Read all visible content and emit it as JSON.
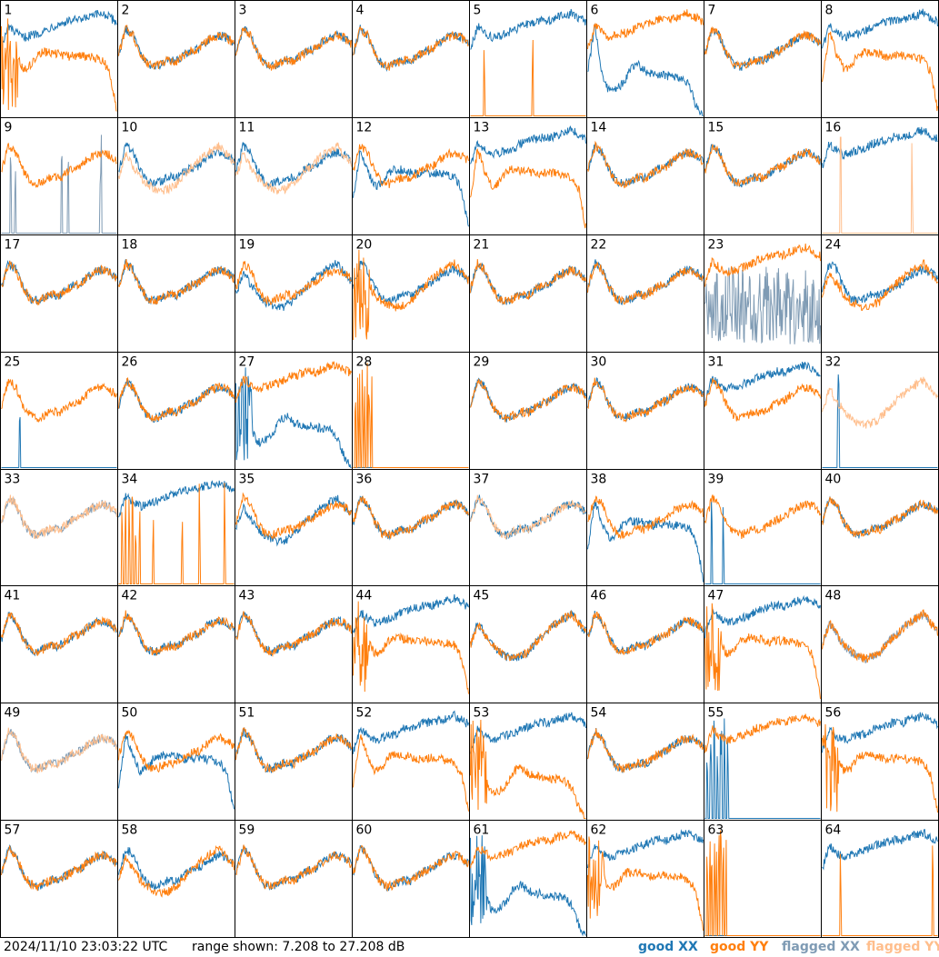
{
  "chart_data": {
    "type": "line",
    "grid": {
      "rows": 8,
      "cols": 8
    },
    "y_range_db": [
      7.208,
      27.208
    ],
    "series_styles": {
      "good_xx": "#1f77b4",
      "good_yy": "#ff7f0e",
      "flagged_xx": "#7f9bb4",
      "flagged_yy": "#ffbe8c"
    },
    "shape_library": {
      "A": [
        0.55,
        0.78,
        0.72,
        0.56,
        0.46,
        0.44,
        0.47,
        0.5,
        0.49,
        0.54,
        0.58,
        0.6,
        0.66,
        0.7,
        0.72,
        0.7,
        0.64
      ],
      "B": [
        0.5,
        0.7,
        0.6,
        0.5,
        0.44,
        0.4,
        0.38,
        0.4,
        0.44,
        0.52,
        0.58,
        0.64,
        0.7,
        0.74,
        0.78,
        0.7,
        0.62
      ],
      "H": [
        0.6,
        0.8,
        0.74,
        0.7,
        0.72,
        0.74,
        0.76,
        0.8,
        0.82,
        0.84,
        0.86,
        0.85,
        0.88,
        0.9,
        0.92,
        0.88,
        0.84
      ],
      "D": [
        0.3,
        0.75,
        0.55,
        0.42,
        0.45,
        0.55,
        0.57,
        0.56,
        0.55,
        0.53,
        0.54,
        0.54,
        0.53,
        0.52,
        0.5,
        0.4,
        0.05
      ],
      "S": [
        0.4,
        0.8,
        0.36,
        0.22,
        0.24,
        0.3,
        0.42,
        0.46,
        0.4,
        0.38,
        0.37,
        0.36,
        0.35,
        0.34,
        0.28,
        0.1,
        0.0
      ]
    },
    "panels": [
      {
        "id": 1,
        "xx": {
          "shape": "H",
          "status": "good"
        },
        "yy": {
          "shape": "D",
          "status": "good",
          "spiky_start": true
        }
      },
      {
        "id": 2,
        "xx": {
          "shape": "A",
          "status": "good"
        },
        "yy": {
          "shape": "A",
          "status": "good"
        }
      },
      {
        "id": 3,
        "xx": {
          "shape": "A",
          "status": "good"
        },
        "yy": {
          "shape": "A",
          "status": "good"
        }
      },
      {
        "id": 4,
        "xx": {
          "shape": "A",
          "status": "good"
        },
        "yy": {
          "shape": "A",
          "status": "good"
        }
      },
      {
        "id": 5,
        "xx": {
          "shape": "H",
          "status": "good"
        },
        "yy": {
          "shape": "flat",
          "status": "good",
          "spikes": [
            0.12,
            0.54
          ]
        }
      },
      {
        "id": 6,
        "xx": {
          "shape": "S",
          "status": "good"
        },
        "yy": {
          "shape": "H",
          "status": "good"
        }
      },
      {
        "id": 7,
        "xx": {
          "shape": "A",
          "status": "good"
        },
        "yy": {
          "shape": "A",
          "status": "good"
        }
      },
      {
        "id": 8,
        "xx": {
          "shape": "H",
          "status": "good"
        },
        "yy": {
          "shape": "D",
          "status": "good"
        }
      },
      {
        "id": 9,
        "xx": {
          "shape": "flat",
          "status": "flagged",
          "spikes": [
            0.08,
            0.12,
            0.52,
            0.58,
            0.86
          ]
        },
        "yy": {
          "shape": "A",
          "status": "good"
        }
      },
      {
        "id": 10,
        "xx": {
          "shape": "A",
          "status": "good"
        },
        "yy": {
          "shape": "B",
          "status": "flagged"
        }
      },
      {
        "id": 11,
        "xx": {
          "shape": "A",
          "status": "good"
        },
        "yy": {
          "shape": "B",
          "status": "flagged"
        }
      },
      {
        "id": 12,
        "xx": {
          "shape": "D",
          "status": "good"
        },
        "yy": {
          "shape": "A",
          "status": "good"
        }
      },
      {
        "id": 13,
        "xx": {
          "shape": "H",
          "status": "good"
        },
        "yy": {
          "shape": "D",
          "status": "good"
        }
      },
      {
        "id": 14,
        "xx": {
          "shape": "A",
          "status": "good"
        },
        "yy": {
          "shape": "A",
          "status": "good"
        }
      },
      {
        "id": 15,
        "xx": {
          "shape": "A",
          "status": "good"
        },
        "yy": {
          "shape": "A",
          "status": "good"
        }
      },
      {
        "id": 16,
        "xx": {
          "shape": "H",
          "status": "good"
        },
        "yy": {
          "shape": "flat",
          "status": "flagged",
          "spikes": [
            0.16,
            0.78
          ]
        }
      },
      {
        "id": 17,
        "xx": {
          "shape": "A",
          "status": "good"
        },
        "yy": {
          "shape": "A",
          "status": "good"
        }
      },
      {
        "id": 18,
        "xx": {
          "shape": "A",
          "status": "good"
        },
        "yy": {
          "shape": "A",
          "status": "good"
        }
      },
      {
        "id": 19,
        "xx": {
          "shape": "B",
          "status": "good"
        },
        "yy": {
          "shape": "A",
          "status": "good"
        }
      },
      {
        "id": 20,
        "xx": {
          "shape": "A",
          "status": "good"
        },
        "yy": {
          "shape": "B",
          "status": "good",
          "spiky_start": true
        }
      },
      {
        "id": 21,
        "xx": {
          "shape": "A",
          "status": "good"
        },
        "yy": {
          "shape": "A",
          "status": "good"
        }
      },
      {
        "id": 22,
        "xx": {
          "shape": "A",
          "status": "good"
        },
        "yy": {
          "shape": "A",
          "status": "good"
        }
      },
      {
        "id": 23,
        "xx": {
          "shape": "noise",
          "status": "flagged"
        },
        "yy": {
          "shape": "H",
          "status": "good"
        }
      },
      {
        "id": 24,
        "xx": {
          "shape": "A",
          "status": "good"
        },
        "yy": {
          "shape": "B",
          "status": "good"
        }
      },
      {
        "id": 25,
        "xx": {
          "shape": "flat",
          "status": "good",
          "spikes": [
            0.16
          ]
        },
        "yy": {
          "shape": "A",
          "status": "good"
        }
      },
      {
        "id": 26,
        "xx": {
          "shape": "A",
          "status": "good"
        },
        "yy": {
          "shape": "A",
          "status": "good"
        }
      },
      {
        "id": 27,
        "xx": {
          "shape": "S",
          "status": "good",
          "spiky_start": true
        },
        "yy": {
          "shape": "H",
          "status": "good"
        }
      },
      {
        "id": 28,
        "xx": {
          "shape": "flat",
          "status": "good"
        },
        "yy": {
          "shape": "flat",
          "status": "good",
          "spikes": [
            0.02,
            0.04,
            0.06,
            0.08,
            0.1,
            0.12,
            0.14,
            0.16
          ]
        }
      },
      {
        "id": 29,
        "xx": {
          "shape": "A",
          "status": "good"
        },
        "yy": {
          "shape": "A",
          "status": "good"
        }
      },
      {
        "id": 30,
        "xx": {
          "shape": "A",
          "status": "good"
        },
        "yy": {
          "shape": "A",
          "status": "good"
        }
      },
      {
        "id": 31,
        "xx": {
          "shape": "H",
          "status": "good"
        },
        "yy": {
          "shape": "A",
          "status": "good"
        }
      },
      {
        "id": 32,
        "xx": {
          "shape": "flat",
          "status": "good",
          "spikes": [
            0.14
          ]
        },
        "yy": {
          "shape": "B",
          "status": "flagged"
        }
      },
      {
        "id": 33,
        "xx": {
          "shape": "A",
          "status": "flagged"
        },
        "yy": {
          "shape": "A",
          "status": "flagged"
        }
      },
      {
        "id": 34,
        "xx": {
          "shape": "H",
          "status": "good"
        },
        "yy": {
          "shape": "flat",
          "status": "good",
          "spikes": [
            0.03,
            0.06,
            0.09,
            0.12,
            0.15,
            0.18,
            0.3,
            0.55,
            0.7,
            0.92
          ]
        }
      },
      {
        "id": 35,
        "xx": {
          "shape": "B",
          "status": "good"
        },
        "yy": {
          "shape": "A",
          "status": "good"
        }
      },
      {
        "id": 36,
        "xx": {
          "shape": "A",
          "status": "good"
        },
        "yy": {
          "shape": "A",
          "status": "good"
        }
      },
      {
        "id": 37,
        "xx": {
          "shape": "A",
          "status": "good"
        },
        "yy": {
          "shape": "A",
          "status": "flagged"
        }
      },
      {
        "id": 38,
        "xx": {
          "shape": "D",
          "status": "good"
        },
        "yy": {
          "shape": "A",
          "status": "good"
        }
      },
      {
        "id": 39,
        "xx": {
          "shape": "flat",
          "status": "good",
          "spikes": [
            0.06,
            0.16
          ]
        },
        "yy": {
          "shape": "A",
          "status": "good"
        }
      },
      {
        "id": 40,
        "xx": {
          "shape": "A",
          "status": "good"
        },
        "yy": {
          "shape": "A",
          "status": "good"
        }
      },
      {
        "id": 41,
        "xx": {
          "shape": "A",
          "status": "good"
        },
        "yy": {
          "shape": "A",
          "status": "good"
        }
      },
      {
        "id": 42,
        "xx": {
          "shape": "A",
          "status": "good"
        },
        "yy": {
          "shape": "A",
          "status": "good"
        }
      },
      {
        "id": 43,
        "xx": {
          "shape": "A",
          "status": "good"
        },
        "yy": {
          "shape": "A",
          "status": "good"
        }
      },
      {
        "id": 44,
        "xx": {
          "shape": "H",
          "status": "good"
        },
        "yy": {
          "shape": "D",
          "status": "good",
          "spiky_start": true
        }
      },
      {
        "id": 45,
        "xx": {
          "shape": "B",
          "status": "good"
        },
        "yy": {
          "shape": "B",
          "status": "good"
        }
      },
      {
        "id": 46,
        "xx": {
          "shape": "A",
          "status": "good"
        },
        "yy": {
          "shape": "A",
          "status": "good"
        }
      },
      {
        "id": 47,
        "xx": {
          "shape": "H",
          "status": "good"
        },
        "yy": {
          "shape": "D",
          "status": "good",
          "spiky_start": true
        }
      },
      {
        "id": 48,
        "xx": {
          "shape": "B",
          "status": "flagged"
        },
        "yy": {
          "shape": "B",
          "status": "good"
        }
      },
      {
        "id": 49,
        "xx": {
          "shape": "A",
          "status": "flagged"
        },
        "yy": {
          "shape": "A",
          "status": "flagged"
        }
      },
      {
        "id": 50,
        "xx": {
          "shape": "D",
          "status": "good"
        },
        "yy": {
          "shape": "A",
          "status": "good"
        }
      },
      {
        "id": 51,
        "xx": {
          "shape": "A",
          "status": "good"
        },
        "yy": {
          "shape": "A",
          "status": "good"
        }
      },
      {
        "id": 52,
        "xx": {
          "shape": "H",
          "status": "good"
        },
        "yy": {
          "shape": "D",
          "status": "good"
        }
      },
      {
        "id": 53,
        "xx": {
          "shape": "H",
          "status": "good"
        },
        "yy": {
          "shape": "S",
          "status": "good",
          "spiky_start": true
        }
      },
      {
        "id": 54,
        "xx": {
          "shape": "A",
          "status": "good"
        },
        "yy": {
          "shape": "A",
          "status": "good"
        }
      },
      {
        "id": 55,
        "xx": {
          "shape": "flat",
          "status": "good",
          "spikes": [
            0.02,
            0.05,
            0.08,
            0.11,
            0.14,
            0.17,
            0.2
          ]
        },
        "yy": {
          "shape": "H",
          "status": "good"
        }
      },
      {
        "id": 56,
        "xx": {
          "shape": "H",
          "status": "good"
        },
        "yy": {
          "shape": "D",
          "status": "good",
          "spiky_start": true
        }
      },
      {
        "id": 57,
        "xx": {
          "shape": "A",
          "status": "good"
        },
        "yy": {
          "shape": "A",
          "status": "good"
        }
      },
      {
        "id": 58,
        "xx": {
          "shape": "A",
          "status": "good"
        },
        "yy": {
          "shape": "B",
          "status": "good"
        }
      },
      {
        "id": 59,
        "xx": {
          "shape": "A",
          "status": "good"
        },
        "yy": {
          "shape": "A",
          "status": "good"
        }
      },
      {
        "id": 60,
        "xx": {
          "shape": "A",
          "status": "good"
        },
        "yy": {
          "shape": "A",
          "status": "good"
        }
      },
      {
        "id": 61,
        "xx": {
          "shape": "S",
          "status": "good",
          "spiky_start": true
        },
        "yy": {
          "shape": "H",
          "status": "good"
        }
      },
      {
        "id": 62,
        "xx": {
          "shape": "H",
          "status": "good"
        },
        "yy": {
          "shape": "D",
          "status": "good",
          "spiky_start": true
        }
      },
      {
        "id": 63,
        "xx": {
          "shape": "flat",
          "status": "good"
        },
        "yy": {
          "shape": "flat",
          "status": "good",
          "spikes": [
            0.02,
            0.04,
            0.06,
            0.08,
            0.1,
            0.12,
            0.14,
            0.16,
            0.18
          ]
        }
      },
      {
        "id": 64,
        "xx": {
          "shape": "H",
          "status": "good"
        },
        "yy": {
          "shape": "flat",
          "status": "good",
          "spikes": [
            0.16,
            0.96
          ]
        }
      }
    ]
  },
  "footer": {
    "timestamp": "2024/11/10 23:03:22 UTC",
    "range_text": "range shown: 7.208 to 27.208 dB"
  },
  "legend": [
    {
      "label": "good XX",
      "color": "#1f77b4"
    },
    {
      "label": "good YY",
      "color": "#ff7f0e"
    },
    {
      "label": "flagged XX",
      "color": "#7f9bb4"
    },
    {
      "label": "flagged YY",
      "color": "#ffbe8c"
    }
  ]
}
